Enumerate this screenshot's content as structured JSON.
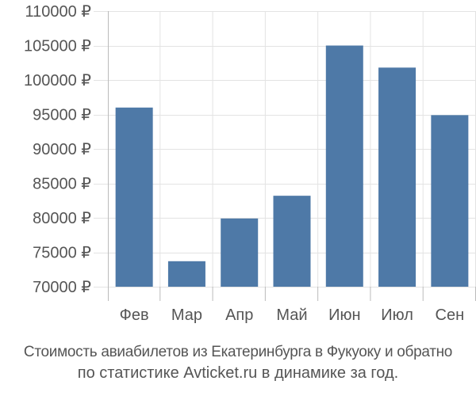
{
  "chart_data": {
    "type": "bar",
    "categories": [
      "Фев",
      "Мар",
      "Апр",
      "Май",
      "Июн",
      "Июл",
      "Сен"
    ],
    "values": [
      96000,
      73700,
      79900,
      83200,
      105000,
      101800,
      94900
    ],
    "ylim": [
      70000,
      110000
    ],
    "yticks": [
      {
        "value": 110000,
        "label": "110000 ₽"
      },
      {
        "value": 105000,
        "label": "105000 ₽"
      },
      {
        "value": 100000,
        "label": "100000 ₽"
      },
      {
        "value": 95000,
        "label": "95000 ₽"
      },
      {
        "value": 90000,
        "label": "90000 ₽"
      },
      {
        "value": 85000,
        "label": "85000 ₽"
      },
      {
        "value": 80000,
        "label": "80000 ₽"
      },
      {
        "value": 75000,
        "label": "75000 ₽"
      },
      {
        "value": 70000,
        "label": "70000 ₽"
      }
    ],
    "grid": true,
    "bar_color": "#4e79a7"
  },
  "caption": {
    "line1": "Стоимость авиабилетов из Екатеринбурга в Фукуоку и обратно",
    "line2": "по статистике Avticket.ru в динамике за год."
  }
}
